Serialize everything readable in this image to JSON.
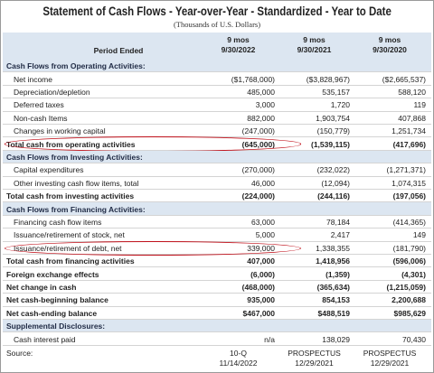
{
  "title": "Statement of Cash Flows - Year-over-Year - Standardized - Year to Date",
  "subtitle": "(Thousands of U.S. Dollars)",
  "header": {
    "label": "Period Ended",
    "columns": [
      [
        "9 mos",
        "9/30/2022"
      ],
      [
        "9 mos",
        "9/30/2021"
      ],
      [
        "9 mos",
        "9/30/2020"
      ]
    ]
  },
  "rows": [
    {
      "label": "Cash Flows from Operating Activities:",
      "style": "section"
    },
    {
      "label": "Net income",
      "style": "item",
      "values": [
        "($1,768,000)",
        "($3,828,967)",
        "($2,665,537)"
      ]
    },
    {
      "label": "Depreciation/depletion",
      "style": "item",
      "values": [
        "485,000",
        "535,157",
        "588,120"
      ]
    },
    {
      "label": "Deferred taxes",
      "style": "item",
      "values": [
        "3,000",
        "1,720",
        "119"
      ]
    },
    {
      "label": "Non-cash Items",
      "style": "item",
      "values": [
        "882,000",
        "1,903,754",
        "407,868"
      ]
    },
    {
      "label": "Changes in working capital",
      "style": "item",
      "values": [
        "(247,000)",
        "(150,779)",
        "1,251,734"
      ]
    },
    {
      "label": "Total cash from operating activities",
      "style": "total",
      "highlight": true,
      "values": [
        "(645,000)",
        "(1,539,115)",
        "(417,696)"
      ]
    },
    {
      "label": "Cash Flows from Investing Activities:",
      "style": "section"
    },
    {
      "label": "Capital expenditures",
      "style": "item",
      "values": [
        "(270,000)",
        "(232,022)",
        "(1,271,371)"
      ]
    },
    {
      "label": "Other investing cash flow items, total",
      "style": "item",
      "values": [
        "46,000",
        "(12,094)",
        "1,074,315"
      ]
    },
    {
      "label": "Total cash from investing activities",
      "style": "total",
      "values": [
        "(224,000)",
        "(244,116)",
        "(197,056)"
      ]
    },
    {
      "label": "Cash Flows from Financing Activities:",
      "style": "section"
    },
    {
      "label": "Financing cash flow items",
      "style": "item",
      "values": [
        "63,000",
        "78,184",
        "(414,365)"
      ]
    },
    {
      "label": "Issuance/retirement of stock, net",
      "style": "item",
      "values": [
        "5,000",
        "2,417",
        "149"
      ]
    },
    {
      "label": "Issuance/retirement of debt, net",
      "style": "item",
      "highlight": true,
      "values": [
        "339,000",
        "1,338,355",
        "(181,790)"
      ]
    },
    {
      "label": "Total cash from financing activities",
      "style": "total",
      "values": [
        "407,000",
        "1,418,956",
        "(596,006)"
      ]
    },
    {
      "label": "Foreign exchange effects",
      "style": "total",
      "values": [
        "(6,000)",
        "(1,359)",
        "(4,301)"
      ]
    },
    {
      "label": "Net change in cash",
      "style": "total",
      "values": [
        "(468,000)",
        "(365,634)",
        "(1,215,059)"
      ]
    },
    {
      "label": "Net cash-beginning balance",
      "style": "total",
      "values": [
        "935,000",
        "854,153",
        "2,200,688"
      ]
    },
    {
      "label": "Net cash-ending balance",
      "style": "total",
      "values": [
        "$467,000",
        "$488,519",
        "$985,629"
      ]
    },
    {
      "label": "Supplemental Disclosures:",
      "style": "section"
    },
    {
      "label": "Cash interest paid",
      "style": "item",
      "values": [
        "n/a",
        "138,029",
        "70,430"
      ]
    }
  ],
  "source": {
    "label": "Source:",
    "values": [
      [
        "10-Q",
        "11/14/2022"
      ],
      [
        "PROSPECTUS",
        "12/29/2021"
      ],
      [
        "PROSPECTUS",
        "12/29/2021"
      ]
    ]
  }
}
